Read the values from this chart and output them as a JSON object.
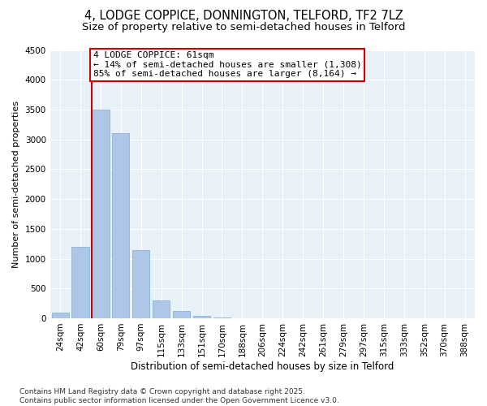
{
  "title_line1": "4, LODGE COPPICE, DONNINGTON, TELFORD, TF2 7LZ",
  "title_line2": "Size of property relative to semi-detached houses in Telford",
  "xlabel": "Distribution of semi-detached houses by size in Telford",
  "ylabel": "Number of semi-detached properties",
  "categories": [
    "24sqm",
    "42sqm",
    "60sqm",
    "79sqm",
    "97sqm",
    "115sqm",
    "133sqm",
    "151sqm",
    "170sqm",
    "188sqm",
    "206sqm",
    "224sqm",
    "242sqm",
    "261sqm",
    "279sqm",
    "297sqm",
    "315sqm",
    "333sqm",
    "352sqm",
    "370sqm",
    "388sqm"
  ],
  "values": [
    100,
    1200,
    3500,
    3100,
    1150,
    300,
    120,
    40,
    15,
    5,
    2,
    1,
    0,
    0,
    0,
    0,
    0,
    0,
    0,
    0,
    0
  ],
  "bar_color": "#aec6e8",
  "bar_edgecolor": "#7aadd4",
  "vline_x_index": 2,
  "vline_color": "#cc0000",
  "annotation_text": "4 LODGE COPPICE: 61sqm\n← 14% of semi-detached houses are smaller (1,308)\n85% of semi-detached houses are larger (8,164) →",
  "annotation_box_color": "#ffffff",
  "annotation_box_edgecolor": "#cc0000",
  "ylim": [
    0,
    4500
  ],
  "yticks": [
    0,
    500,
    1000,
    1500,
    2000,
    2500,
    3000,
    3500,
    4000,
    4500
  ],
  "background_color": "#e8f0f8",
  "footer_text": "Contains HM Land Registry data © Crown copyright and database right 2025.\nContains public sector information licensed under the Open Government Licence v3.0.",
  "title_fontsize": 10.5,
  "subtitle_fontsize": 9.5,
  "xlabel_fontsize": 8.5,
  "ylabel_fontsize": 8,
  "tick_fontsize": 7.5,
  "annotation_fontsize": 8,
  "footer_fontsize": 6.5
}
